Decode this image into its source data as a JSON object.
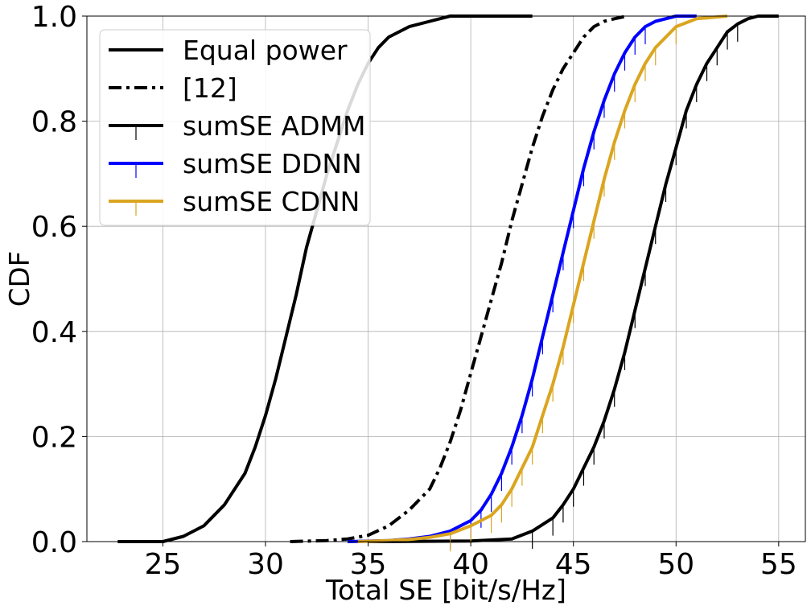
{
  "chart_data": {
    "type": "line",
    "title": "",
    "xlabel": "Total SE [bit/s/Hz]",
    "ylabel": "CDF",
    "xlim": [
      21.3,
      56.3
    ],
    "ylim": [
      0,
      1
    ],
    "xticks": [
      25,
      30,
      35,
      40,
      45,
      50,
      55
    ],
    "yticks": [
      0.0,
      0.2,
      0.4,
      0.6,
      0.8,
      1.0
    ],
    "xtick_labels": [
      "25",
      "30",
      "35",
      "40",
      "45",
      "50",
      "55"
    ],
    "ytick_labels": [
      "0.0",
      "0.2",
      "0.4",
      "0.6",
      "0.8",
      "1.0"
    ],
    "grid": true,
    "legend_position": "top-left",
    "series": [
      {
        "name": "Equal power",
        "color": "#000000",
        "style": "solid",
        "marker": "none",
        "x": [
          22.8,
          25.0,
          26.0,
          27.0,
          28.0,
          29.0,
          29.5,
          30.0,
          30.5,
          31.0,
          31.5,
          32.0,
          32.5,
          33.0,
          33.5,
          34.0,
          34.5,
          35.0,
          35.5,
          36.0,
          37.0,
          38.0,
          39.0,
          40.0,
          41.0,
          43.0
        ],
        "y": [
          0.0,
          0.0,
          0.01,
          0.03,
          0.07,
          0.13,
          0.18,
          0.24,
          0.31,
          0.39,
          0.47,
          0.56,
          0.63,
          0.7,
          0.76,
          0.82,
          0.87,
          0.91,
          0.94,
          0.96,
          0.98,
          0.99,
          1.0,
          1.0,
          1.0,
          1.0
        ]
      },
      {
        "name": "[12]",
        "color": "#000000",
        "style": "dashdot",
        "marker": "none",
        "x": [
          31.2,
          33.0,
          34.0,
          35.0,
          36.0,
          37.0,
          38.0,
          38.5,
          39.0,
          39.5,
          40.0,
          40.5,
          41.0,
          41.5,
          42.0,
          42.5,
          43.0,
          43.5,
          44.0,
          44.5,
          45.0,
          45.5,
          46.0,
          46.5,
          47.0,
          47.6
        ],
        "y": [
          0.0,
          0.002,
          0.005,
          0.012,
          0.03,
          0.06,
          0.1,
          0.14,
          0.19,
          0.25,
          0.32,
          0.39,
          0.46,
          0.53,
          0.61,
          0.68,
          0.75,
          0.81,
          0.86,
          0.9,
          0.93,
          0.96,
          0.98,
          0.99,
          0.995,
          1.0
        ]
      },
      {
        "name": "sumSE ADMM",
        "color": "#000000",
        "style": "solid",
        "marker": "tick",
        "x": [
          35.0,
          40.0,
          42.0,
          43.0,
          44.0,
          44.5,
          45.0,
          45.5,
          46.0,
          46.5,
          47.0,
          47.5,
          48.0,
          48.5,
          49.0,
          49.5,
          50.0,
          50.5,
          51.0,
          51.5,
          52.0,
          52.5,
          53.0,
          53.5,
          54.0,
          55.0
        ],
        "y": [
          0.0,
          0.001,
          0.005,
          0.02,
          0.045,
          0.07,
          0.1,
          0.14,
          0.18,
          0.23,
          0.29,
          0.36,
          0.44,
          0.52,
          0.6,
          0.68,
          0.75,
          0.82,
          0.87,
          0.91,
          0.94,
          0.97,
          0.985,
          0.995,
          1.0,
          1.0
        ]
      },
      {
        "name": "sumSE DDNN",
        "color": "#0000ff",
        "style": "solid",
        "marker": "tick",
        "x": [
          34.0,
          36.0,
          37.0,
          38.0,
          39.0,
          40.0,
          40.5,
          41.0,
          41.5,
          42.0,
          42.5,
          43.0,
          43.5,
          44.0,
          44.5,
          45.0,
          45.5,
          46.0,
          46.5,
          47.0,
          47.5,
          48.0,
          48.5,
          49.0,
          50.0,
          51.0
        ],
        "y": [
          0.0,
          0.002,
          0.005,
          0.01,
          0.02,
          0.04,
          0.06,
          0.09,
          0.13,
          0.18,
          0.24,
          0.31,
          0.39,
          0.47,
          0.55,
          0.63,
          0.71,
          0.78,
          0.84,
          0.89,
          0.93,
          0.96,
          0.98,
          0.99,
          1.0,
          1.0
        ]
      },
      {
        "name": "sumSE CDNN",
        "color": "#daa520",
        "style": "solid",
        "marker": "tick",
        "x": [
          34.5,
          36.0,
          37.0,
          38.0,
          39.0,
          40.0,
          41.0,
          41.5,
          42.0,
          42.5,
          43.0,
          43.5,
          44.0,
          44.5,
          45.0,
          45.5,
          46.0,
          46.5,
          47.0,
          47.5,
          48.0,
          48.5,
          49.0,
          50.0,
          51.0,
          52.5
        ],
        "y": [
          0.0,
          0.002,
          0.004,
          0.008,
          0.015,
          0.03,
          0.05,
          0.07,
          0.1,
          0.14,
          0.18,
          0.24,
          0.3,
          0.37,
          0.45,
          0.53,
          0.61,
          0.69,
          0.76,
          0.82,
          0.87,
          0.91,
          0.94,
          0.98,
          0.995,
          1.0
        ]
      }
    ]
  }
}
